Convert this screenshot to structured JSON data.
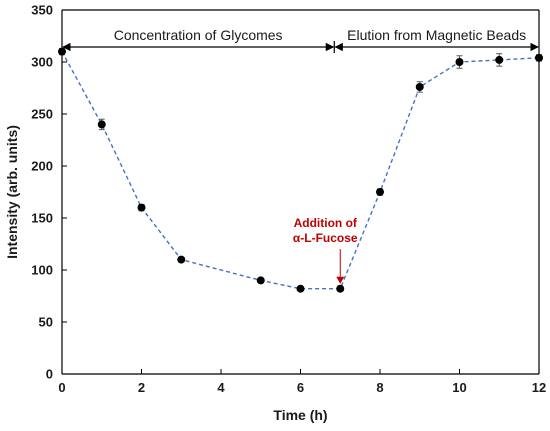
{
  "chart_data": {
    "type": "line",
    "title": "",
    "xlabel": "Time (h)",
    "ylabel": "Intensity (arb. units)",
    "xlim": [
      0,
      12
    ],
    "ylim": [
      0,
      350
    ],
    "x_ticks": [
      "0",
      "2",
      "4",
      "6",
      "8",
      "10",
      "12"
    ],
    "y_ticks": [
      "0",
      "50",
      "100",
      "150",
      "200",
      "250",
      "300",
      "350"
    ],
    "grid": false,
    "legend": "none",
    "line_color": "#4472C4",
    "line_style": "dashed",
    "marker_color": "#000000",
    "annotation_color": "#C00000",
    "series": [
      {
        "x": [
          0,
          1,
          2,
          3,
          5,
          6,
          7,
          8,
          9,
          10,
          11,
          12
        ],
        "values": [
          310,
          240,
          160,
          110,
          90,
          82,
          82,
          175,
          276,
          300,
          302,
          304
        ],
        "error": [
          3,
          5,
          3,
          2,
          2,
          2,
          2,
          3,
          5,
          6,
          6,
          3
        ]
      }
    ],
    "phases": [
      {
        "label": "Concentration of Glycomes",
        "x_start": 0,
        "x_end": 6.85
      },
      {
        "label": "Elution from Magnetic Beads",
        "x_start": 6.85,
        "x_end": 12
      }
    ],
    "annotation": {
      "lines": [
        "Addition of",
        "α-L-Fucose"
      ],
      "x": 7,
      "y": 82
    }
  }
}
